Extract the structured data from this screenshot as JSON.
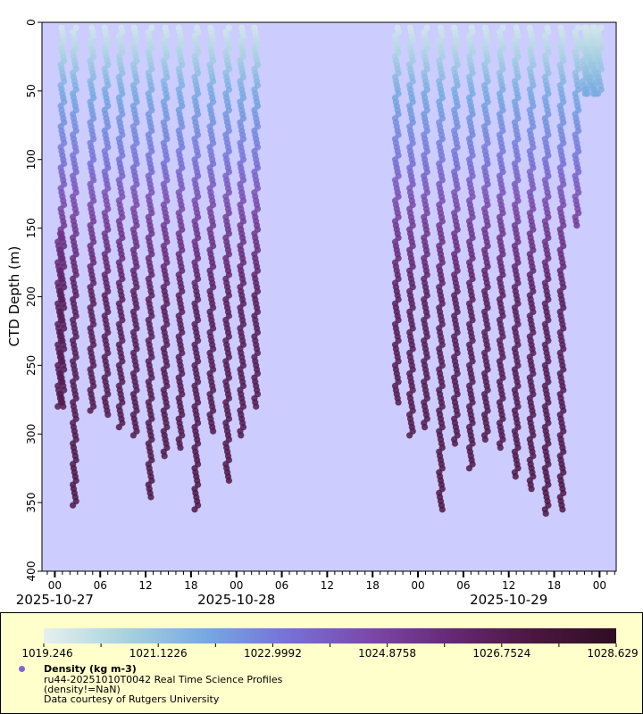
{
  "chart_data": {
    "type": "scatter",
    "title": "",
    "ylabel": "CTD Depth (m)",
    "xlabel": "",
    "y_inverted": true,
    "ylim": [
      0,
      400
    ],
    "yticks": [
      0,
      50,
      100,
      150,
      200,
      250,
      300,
      350,
      400
    ],
    "x_range_hours": [
      -1.7,
      74.2
    ],
    "x_reference": "2025-10-27 00:00",
    "x_major_ticks": [
      {
        "hour": 0,
        "label": "00"
      },
      {
        "hour": 6,
        "label": "06"
      },
      {
        "hour": 12,
        "label": "12"
      },
      {
        "hour": 18,
        "label": "18"
      },
      {
        "hour": 24,
        "label": "00"
      },
      {
        "hour": 30,
        "label": "06"
      },
      {
        "hour": 36,
        "label": "12"
      },
      {
        "hour": 42,
        "label": "18"
      },
      {
        "hour": 48,
        "label": "00"
      },
      {
        "hour": 54,
        "label": "06"
      },
      {
        "hour": 60,
        "label": "12"
      },
      {
        "hour": 66,
        "label": "18"
      },
      {
        "hour": 72,
        "label": "00"
      }
    ],
    "date_labels": [
      {
        "hour": 0,
        "label": "2025-10-27"
      },
      {
        "hour": 24,
        "label": "2025-10-28"
      },
      {
        "hour": 60,
        "label": "2025-10-29"
      }
    ],
    "color_variable": "Density (kg m-3)",
    "color_range": [
      1019.246,
      1028.629
    ],
    "colorbar_ticks": [
      "1019.246",
      "1021.1226",
      "1022.9992",
      "1024.8758",
      "1026.7524",
      "1028.629"
    ],
    "profiles": [
      {
        "hour": 0.6,
        "max_depth": 280,
        "min_depth": 152
      },
      {
        "hour": 1.0,
        "max_depth": 280,
        "min_depth": 2
      },
      {
        "hour": 2.6,
        "max_depth": 353,
        "min_depth": 2
      },
      {
        "hour": 4.9,
        "max_depth": 283,
        "min_depth": 2
      },
      {
        "hour": 6.8,
        "max_depth": 287,
        "min_depth": 2
      },
      {
        "hour": 8.7,
        "max_depth": 296,
        "min_depth": 2
      },
      {
        "hour": 10.6,
        "max_depth": 301,
        "min_depth": 2
      },
      {
        "hour": 12.6,
        "max_depth": 348,
        "min_depth": 2
      },
      {
        "hour": 14.6,
        "max_depth": 318,
        "min_depth": 2
      },
      {
        "hour": 16.6,
        "max_depth": 310,
        "min_depth": 2
      },
      {
        "hour": 18.7,
        "max_depth": 357,
        "min_depth": 2
      },
      {
        "hour": 20.7,
        "max_depth": 300,
        "min_depth": 2
      },
      {
        "hour": 22.8,
        "max_depth": 335,
        "min_depth": 2
      },
      {
        "hour": 24.7,
        "max_depth": 302,
        "min_depth": 2
      },
      {
        "hour": 26.6,
        "max_depth": 280,
        "min_depth": 2
      },
      {
        "hour": 45.2,
        "max_depth": 277,
        "min_depth": 2
      },
      {
        "hour": 47.1,
        "max_depth": 301,
        "min_depth": 2
      },
      {
        "hour": 49.0,
        "max_depth": 295,
        "min_depth": 2
      },
      {
        "hour": 51.0,
        "max_depth": 356,
        "min_depth": 2
      },
      {
        "hour": 53.0,
        "max_depth": 307,
        "min_depth": 2
      },
      {
        "hour": 55.0,
        "max_depth": 326,
        "min_depth": 2
      },
      {
        "hour": 57.0,
        "max_depth": 304,
        "min_depth": 2
      },
      {
        "hour": 59.0,
        "max_depth": 312,
        "min_depth": 2
      },
      {
        "hour": 61.0,
        "max_depth": 333,
        "min_depth": 2
      },
      {
        "hour": 63.0,
        "max_depth": 340,
        "min_depth": 2
      },
      {
        "hour": 65.0,
        "max_depth": 360,
        "min_depth": 2
      },
      {
        "hour": 67.0,
        "max_depth": 357,
        "min_depth": 2
      },
      {
        "hour": 69.0,
        "max_depth": 150,
        "min_depth": 2
      },
      {
        "hour": 70.0,
        "max_depth": 54,
        "min_depth": 2
      },
      {
        "hour": 70.5,
        "max_depth": 54,
        "min_depth": 2
      },
      {
        "hour": 71.0,
        "max_depth": 54,
        "min_depth": 2
      },
      {
        "hour": 71.5,
        "max_depth": 54,
        "min_depth": 2
      },
      {
        "hour": 72.0,
        "max_depth": 54,
        "min_depth": 2
      }
    ],
    "density_profile": [
      {
        "depth": 0,
        "density": 1019.5
      },
      {
        "depth": 50,
        "density": 1021.8
      },
      {
        "depth": 100,
        "density": 1023.2
      },
      {
        "depth": 150,
        "density": 1025.3
      },
      {
        "depth": 200,
        "density": 1026.6
      },
      {
        "depth": 300,
        "density": 1027.0
      },
      {
        "depth": 360,
        "density": 1027.2
      }
    ],
    "legend_position": "bottom"
  },
  "legend": {
    "title": "Density (kg m-3)",
    "dataset": "ru44-20251010T0042 Real Time Science Profiles",
    "constraint": "(density!=NaN)",
    "credit": "Data courtesy of Rutgers University"
  },
  "colors": {
    "plot_background": "#ccccff",
    "legend_background": "#ffffcc",
    "colormap": [
      "#e6f0ef",
      "#a8d2e0",
      "#75a8e2",
      "#7770d6",
      "#7a48a8",
      "#662875",
      "#4a1640",
      "#2f0e22"
    ]
  }
}
